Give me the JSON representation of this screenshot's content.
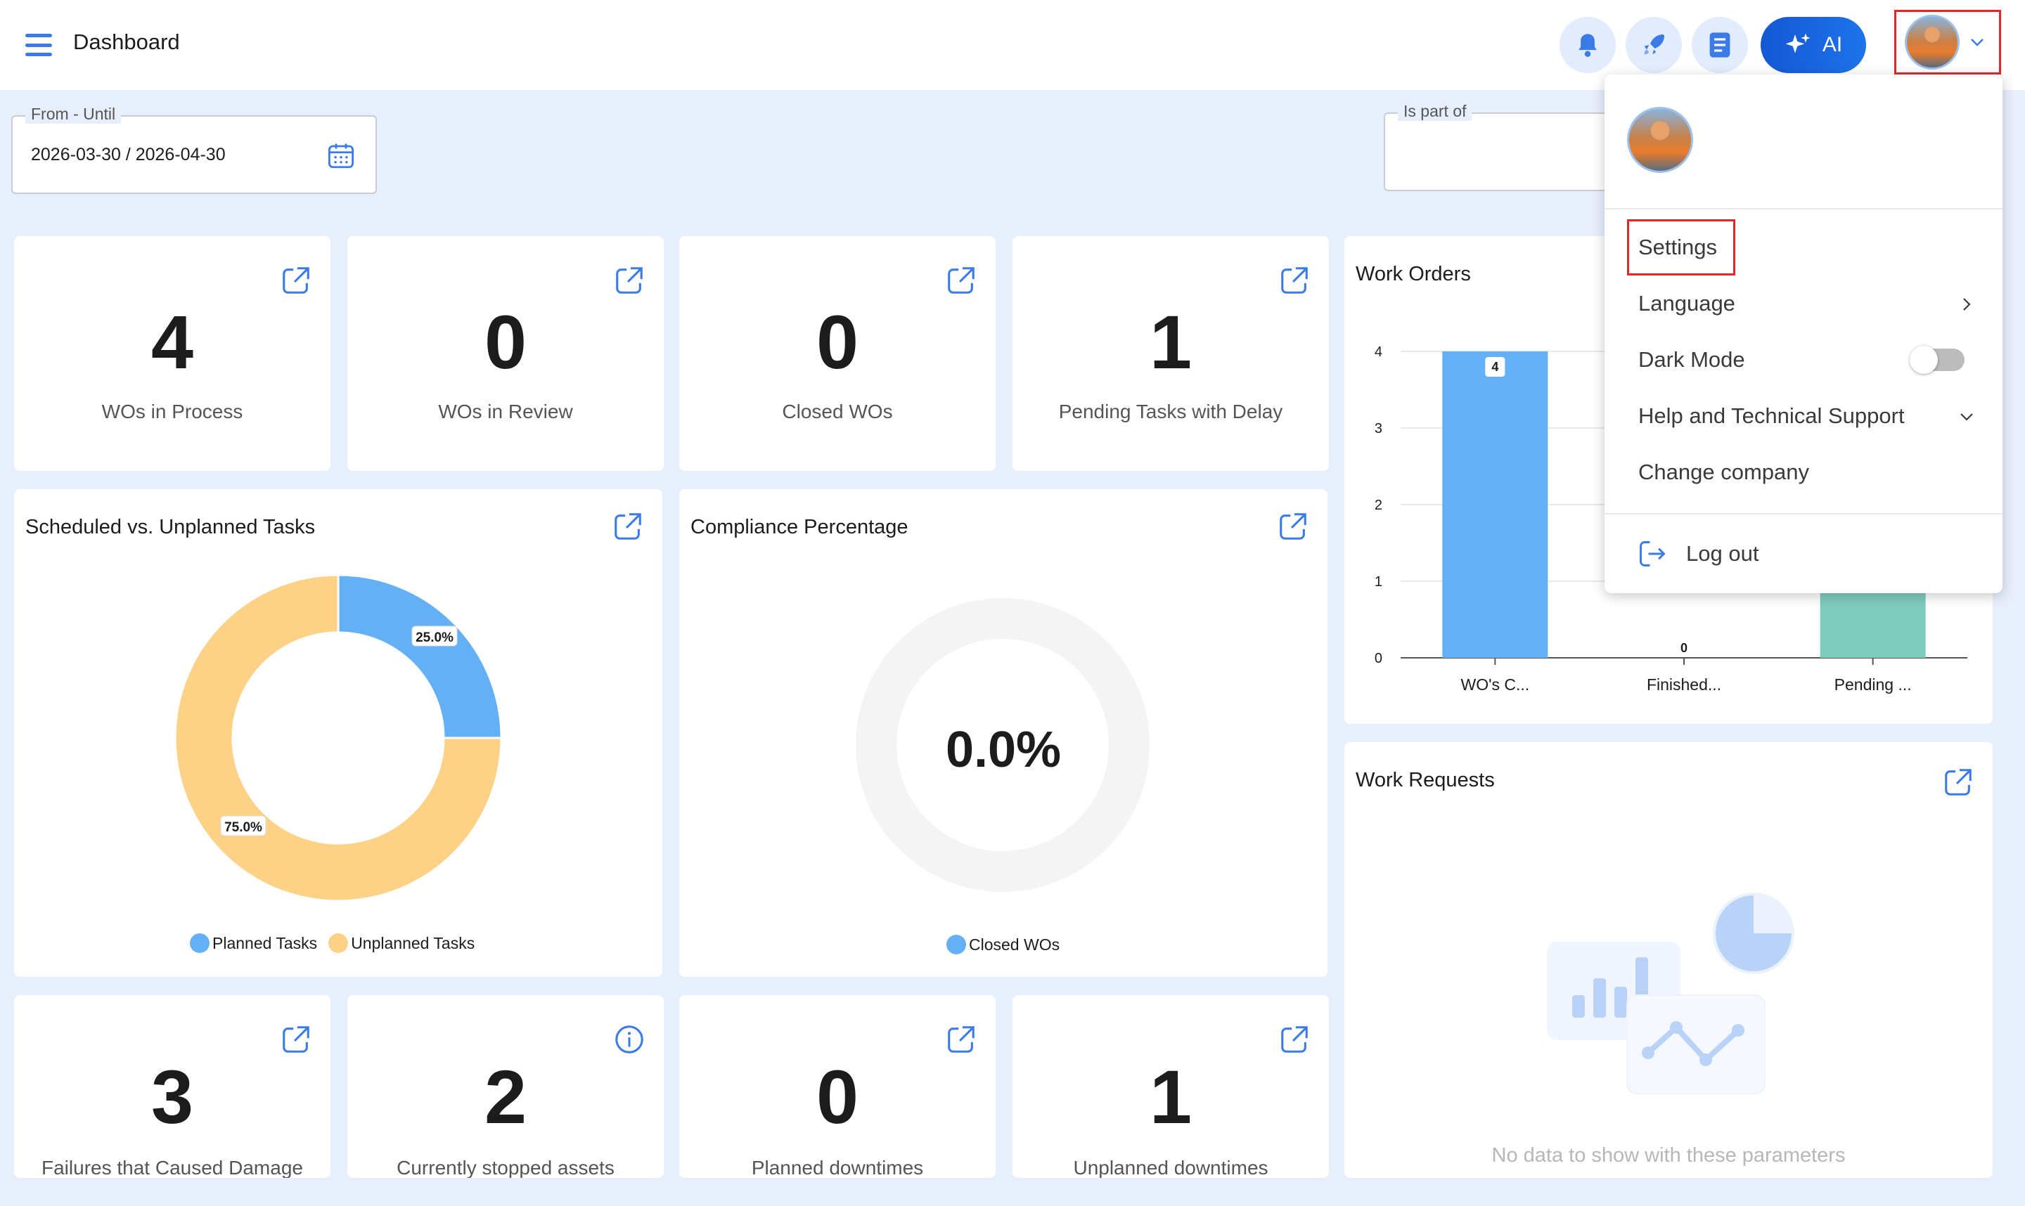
{
  "header": {
    "title": "Dashboard",
    "ai_label": "AI"
  },
  "filters": {
    "date_label": "From - Until",
    "date_value": "2026-03-30 / 2026-04-30",
    "partof_label": "Is part of"
  },
  "kpis_top": [
    {
      "value": "4",
      "label": "WOs in Process"
    },
    {
      "value": "0",
      "label": "WOs in Review"
    },
    {
      "value": "0",
      "label": "Closed WOs"
    },
    {
      "value": "1",
      "label": "Pending Tasks with Delay"
    }
  ],
  "kpis_bottom": [
    {
      "value": "3",
      "label": "Failures that Caused Damage"
    },
    {
      "value": "2",
      "label": "Currently stopped assets"
    },
    {
      "value": "0",
      "label": "Planned downtimes"
    },
    {
      "value": "1",
      "label": "Unplanned downtimes"
    }
  ],
  "scheduled": {
    "title": "Scheduled vs. Unplanned Tasks",
    "slices": [
      {
        "name": "Planned Tasks",
        "value": 25.0,
        "label": "25.0%",
        "color": "#64b0f5"
      },
      {
        "name": "Unplanned Tasks",
        "value": 75.0,
        "label": "75.0%",
        "color": "#fdd186"
      }
    ]
  },
  "compliance": {
    "title": "Compliance Percentage",
    "value": "0.0%",
    "legend": "Closed WOs",
    "legend_color": "#64b0f5"
  },
  "work_orders": {
    "title": "Work Orders",
    "y_ticks": [
      "0",
      "1",
      "2",
      "3",
      "4"
    ],
    "categories": [
      "WO's C...",
      "Finished...",
      "Pending ..."
    ],
    "values": [
      4,
      0,
      1
    ],
    "value_labels": [
      "4",
      "0",
      ""
    ],
    "colors": [
      "#64b0f5",
      "#64b0f5",
      "#7fcbbe"
    ]
  },
  "work_requests": {
    "title": "Work Requests",
    "empty_text": "No data to show with these parameters"
  },
  "user_menu": {
    "settings": "Settings",
    "language": "Language",
    "dark_mode": "Dark Mode",
    "dark_mode_on": false,
    "help": "Help and Technical Support",
    "change_company": "Change company",
    "logout": "Log out"
  },
  "chart_data": [
    {
      "type": "pie",
      "title": "Scheduled vs. Unplanned Tasks",
      "categories": [
        "Planned Tasks",
        "Unplanned Tasks"
      ],
      "values": [
        25.0,
        75.0
      ]
    },
    {
      "type": "bar",
      "title": "Work Orders",
      "categories": [
        "WO's C...",
        "Finished...",
        "Pending ..."
      ],
      "values": [
        4,
        0,
        1
      ],
      "ylim": [
        0,
        4
      ]
    }
  ]
}
